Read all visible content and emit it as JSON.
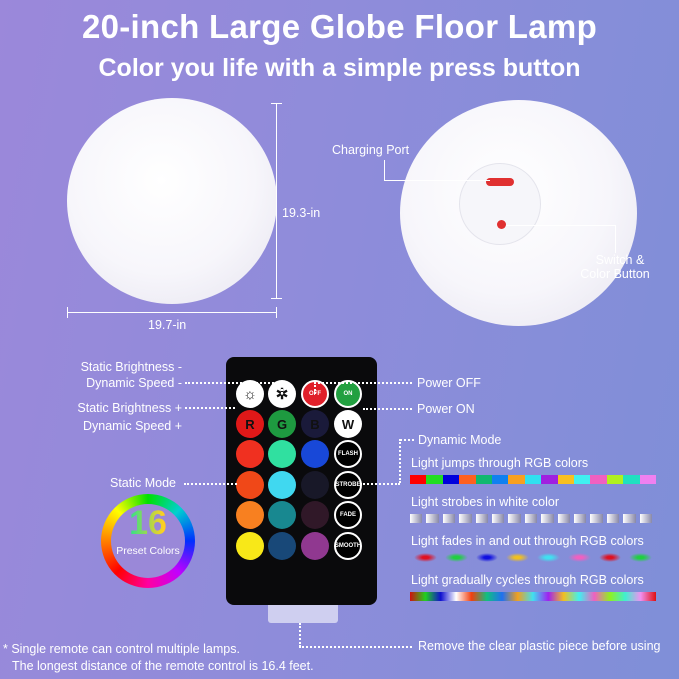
{
  "header": {
    "title": "20-inch Large Globe Floor Lamp",
    "subtitle": "Color you life with a simple press button"
  },
  "dimensions": {
    "height": "19.3-in",
    "width": "19.7-in"
  },
  "bottom_view": {
    "charging_port": "Charging Port",
    "switch_line1": "Switch &",
    "switch_line2": "Color Button"
  },
  "remote_labels": {
    "static_brightness_minus": "Static Brightness -",
    "dynamic_speed_minus": "Dynamic Speed -",
    "static_brightness_plus": "Static Brightness +",
    "dynamic_speed_plus": "Dynamic Speed +",
    "power_off": "Power OFF",
    "power_on": "Power ON",
    "dynamic_mode": "Dynamic Mode",
    "static_mode": "Static Mode"
  },
  "remote_buttons": [
    {
      "label": "",
      "color": "#ffffff",
      "icon": "brightness-down-icon"
    },
    {
      "label": "",
      "color": "#ffffff",
      "icon": "brightness-up-icon"
    },
    {
      "label": "OFF",
      "color": "#e0202a",
      "icon": "power-icon"
    },
    {
      "label": "ON",
      "color": "#22a040",
      "icon": "power-icon"
    },
    {
      "label": "R",
      "color": "#e01818"
    },
    {
      "label": "G",
      "color": "#1e9a40"
    },
    {
      "label": "B",
      "color": "#1a1a3a"
    },
    {
      "label": "W",
      "color": "#ffffff"
    },
    {
      "label": "",
      "color": "#f03020"
    },
    {
      "label": "",
      "color": "#30e0a0"
    },
    {
      "label": "",
      "color": "#1848d8"
    },
    {
      "label": "FLASH",
      "color": "#000000"
    },
    {
      "label": "",
      "color": "#f04818"
    },
    {
      "label": "",
      "color": "#40d8f0"
    },
    {
      "label": "",
      "color": "#181828"
    },
    {
      "label": "STROBE",
      "color": "#000000"
    },
    {
      "label": "",
      "color": "#f88020"
    },
    {
      "label": "",
      "color": "#188890"
    },
    {
      "label": "",
      "color": "#301828"
    },
    {
      "label": "FADE",
      "color": "#000000"
    },
    {
      "label": "",
      "color": "#f8e818"
    },
    {
      "label": "",
      "color": "#184878"
    },
    {
      "label": "",
      "color": "#903890"
    },
    {
      "label": "SMOOTH",
      "color": "#000000"
    }
  ],
  "preset": {
    "number": "16",
    "label": "Preset Colors"
  },
  "modes": [
    {
      "text": "Light jumps through RGB colors",
      "style": "jump",
      "colors": [
        "#ff0000",
        "#22dd22",
        "#0000dd",
        "#ff6020",
        "#10b870",
        "#1080f0",
        "#f8a020",
        "#30e0f0",
        "#a020e0",
        "#f8c020",
        "#40f0f0",
        "#f060c0",
        "#b0f020",
        "#20e0c0",
        "#f080f0"
      ]
    },
    {
      "text": "Light strobes in white color",
      "style": "strobe",
      "colors": [
        "#ffffff",
        "#8888a8"
      ]
    },
    {
      "text": "Light fades in and out through RGB colors",
      "style": "fade",
      "colors": [
        "#e01020",
        "#20d040",
        "#1010e0",
        "#f0c020",
        "#40e0f0",
        "#f060c0",
        "#e01020",
        "#20d040"
      ]
    },
    {
      "text": "Light  gradually cycles through RGB colors",
      "style": "smooth",
      "colors": [
        "#d01010",
        "#20d020",
        "#1010d0",
        "#ffffff",
        "#f04010",
        "#10c080",
        "#2070f0",
        "#f0a020",
        "#40e0f0",
        "#a020f0",
        "#f0c020",
        "#40f0f0",
        "#f060c0",
        "#90f020",
        "#40f0d0",
        "#f090f0",
        "#e01010"
      ]
    }
  ],
  "footer": {
    "note1": "* Single remote can control multiple lamps.",
    "note2": "The longest distance of the remote control is 16.4 feet.",
    "remove": "Remove the clear plastic piece before using"
  }
}
